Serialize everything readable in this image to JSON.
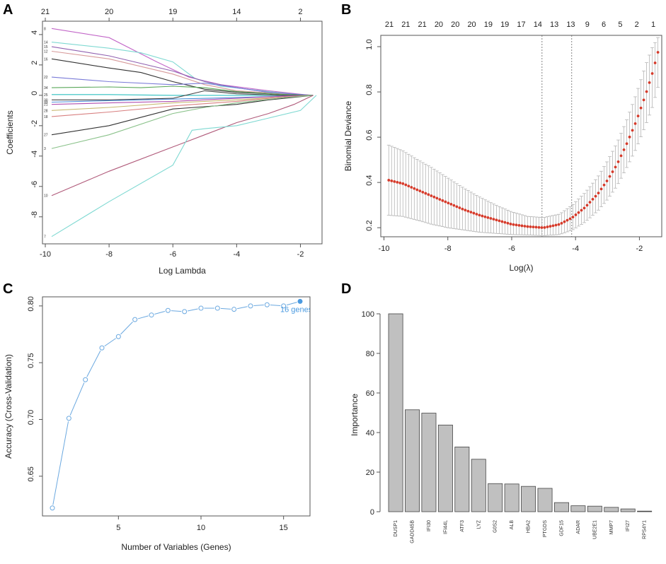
{
  "panels": {
    "A": "A",
    "B": "B",
    "C": "C",
    "D": "D"
  },
  "chart_data": [
    {
      "panel": "A",
      "type": "line",
      "title": "",
      "xlabel": "Log Lambda",
      "ylabel": "Coefficients",
      "xlim": [
        -10,
        -1.5
      ],
      "ylim": [
        -9.5,
        4.6
      ],
      "xticks": [
        -10,
        -8,
        -6,
        -4,
        -2
      ],
      "yticks": [
        4,
        2,
        0,
        -2,
        -4,
        -6,
        -8
      ],
      "top_axis_ticks": [
        {
          "x": -10,
          "label": "21"
        },
        {
          "x": -8,
          "label": "20"
        },
        {
          "x": -6,
          "label": "19"
        },
        {
          "x": -4,
          "label": "14"
        },
        {
          "x": -2,
          "label": "2"
        }
      ],
      "series": [
        {
          "name": "8",
          "color": "#c266c8",
          "points": [
            [
              -9.8,
              4.4
            ],
            [
              -8,
              3.8
            ],
            [
              -6.5,
              2.2
            ],
            [
              -5.5,
              1.2
            ],
            [
              -4.5,
              0.7
            ],
            [
              -3,
              0.3
            ],
            [
              -1.9,
              0.05
            ],
            [
              -1.6,
              0
            ]
          ]
        },
        {
          "name": "14",
          "color": "#7fd9d2",
          "points": [
            [
              -9.8,
              3.5
            ],
            [
              -8,
              3.1
            ],
            [
              -7,
              2.8
            ],
            [
              -6,
              2.2
            ],
            [
              -5.3,
              1.1
            ],
            [
              -4.5,
              0.6
            ],
            [
              -3,
              0.25
            ],
            [
              -1.9,
              0.02
            ],
            [
              -1.6,
              0
            ]
          ]
        },
        {
          "name": "15",
          "color": "#9060b0",
          "points": [
            [
              -9.8,
              3.2
            ],
            [
              -8,
              2.6
            ],
            [
              -6,
              1.6
            ],
            [
              -5,
              0.9
            ],
            [
              -4,
              0.5
            ],
            [
              -3,
              0.2
            ],
            [
              -1.9,
              0.02
            ],
            [
              -1.6,
              0
            ]
          ]
        },
        {
          "name": "12",
          "color": "#d79a9a",
          "points": [
            [
              -9.8,
              2.9
            ],
            [
              -8,
              2.4
            ],
            [
              -6,
              1.4
            ],
            [
              -5,
              0.7
            ],
            [
              -4,
              0.3
            ],
            [
              -2.5,
              0.1
            ],
            [
              -1.6,
              0
            ]
          ]
        },
        {
          "name": "16",
          "color": "#333333",
          "points": [
            [
              -9.8,
              2.4
            ],
            [
              -8,
              1.8
            ],
            [
              -7,
              1.5
            ],
            [
              -6,
              0.9
            ],
            [
              -5,
              0.4
            ],
            [
              -4,
              0.2
            ],
            [
              -2.5,
              0.05
            ],
            [
              -1.6,
              0
            ]
          ]
        },
        {
          "name": "22",
          "color": "#7a7bd8",
          "points": [
            [
              -9.8,
              1.2
            ],
            [
              -8,
              0.9
            ],
            [
              -6,
              0.7
            ],
            [
              -5,
              0.8
            ],
            [
              -4,
              0.5
            ],
            [
              -3,
              0.2
            ],
            [
              -1.6,
              0
            ]
          ]
        },
        {
          "name": "34",
          "color": "#5aa85a",
          "points": [
            [
              -9.8,
              0.5
            ],
            [
              -8,
              0.55
            ],
            [
              -7,
              0.5
            ],
            [
              -6,
              0.6
            ],
            [
              -5,
              0.5
            ],
            [
              -4,
              0.25
            ],
            [
              -2.5,
              0.05
            ],
            [
              -1.6,
              0
            ]
          ]
        },
        {
          "name": "25",
          "color": "#2ec0c0",
          "points": [
            [
              -9.8,
              0.05
            ],
            [
              -8,
              0.05
            ],
            [
              -6,
              0.0
            ],
            [
              -4,
              0.0
            ],
            [
              -1.6,
              0
            ]
          ]
        },
        {
          "name": "30",
          "color": "#444444",
          "points": [
            [
              -9.8,
              -0.3
            ],
            [
              -8,
              -0.3
            ],
            [
              -6,
              -0.2
            ],
            [
              -5,
              0.3
            ],
            [
              -4,
              0.1
            ],
            [
              -2.5,
              0.0
            ],
            [
              -1.6,
              0
            ]
          ]
        },
        {
          "name": "33",
          "color": "#4f8fd8",
          "points": [
            [
              -9.8,
              -0.45
            ],
            [
              -8,
              -0.35
            ],
            [
              -6,
              -0.25
            ],
            [
              -4,
              -0.15
            ],
            [
              -2.5,
              -0.05
            ],
            [
              -1.6,
              0
            ]
          ]
        },
        {
          "name": "21",
          "color": "#b04fb0",
          "points": [
            [
              -9.8,
              -0.6
            ],
            [
              -8,
              -0.5
            ],
            [
              -6,
              -0.4
            ],
            [
              -4,
              -0.2
            ],
            [
              -2.5,
              -0.05
            ],
            [
              -1.6,
              0
            ]
          ]
        },
        {
          "name": "28",
          "color": "#c8b870",
          "points": [
            [
              -9.8,
              -1.0
            ],
            [
              -8,
              -0.8
            ],
            [
              -6,
              -0.5
            ],
            [
              -4,
              -0.3
            ],
            [
              -2.5,
              -0.1
            ],
            [
              -1.6,
              0
            ]
          ]
        },
        {
          "name": "18",
          "color": "#d88080",
          "points": [
            [
              -9.8,
              -1.4
            ],
            [
              -8,
              -1.1
            ],
            [
              -6,
              -0.7
            ],
            [
              -4,
              -0.4
            ],
            [
              -2.5,
              -0.1
            ],
            [
              -1.6,
              0
            ]
          ]
        },
        {
          "name": "27",
          "color": "#333333",
          "points": [
            [
              -9.8,
              -2.6
            ],
            [
              -8,
              -2.0
            ],
            [
              -6,
              -0.9
            ],
            [
              -4,
              -0.6
            ],
            [
              -3,
              -0.3
            ],
            [
              -1.6,
              0
            ]
          ]
        },
        {
          "name": "3",
          "color": "#8ac28a",
          "points": [
            [
              -9.8,
              -3.5
            ],
            [
              -8,
              -2.6
            ],
            [
              -6,
              -1.2
            ],
            [
              -5,
              -0.8
            ],
            [
              -4,
              -0.5
            ],
            [
              -2.5,
              -0.15
            ],
            [
              -1.6,
              0
            ]
          ]
        },
        {
          "name": "10",
          "color": "#b05a7a",
          "points": [
            [
              -9.8,
              -6.6
            ],
            [
              -8,
              -5.0
            ],
            [
              -6,
              -3.4
            ],
            [
              -5,
              -2.6
            ],
            [
              -4,
              -1.8
            ],
            [
              -3,
              -1.2
            ],
            [
              -2.2,
              -0.6
            ],
            [
              -1.8,
              -0.2
            ],
            [
              -1.6,
              0
            ]
          ]
        },
        {
          "name": "7",
          "color": "#7fd9d2",
          "points": [
            [
              -9.8,
              -9.3
            ],
            [
              -8,
              -7.0
            ],
            [
              -6,
              -4.6
            ],
            [
              -5.4,
              -2.3
            ],
            [
              -5,
              -2.2
            ],
            [
              -4,
              -2.0
            ],
            [
              -3,
              -1.5
            ],
            [
              -2,
              -1.0
            ],
            [
              -1.6,
              -0.2
            ],
            [
              -1.5,
              0
            ]
          ]
        }
      ]
    },
    {
      "panel": "B",
      "type": "scatter",
      "title": "",
      "xlabel": "Log(λ)",
      "ylabel": "Binomial Deviance",
      "xlim": [
        -10.1,
        -1.3
      ],
      "ylim": [
        0.16,
        1.05
      ],
      "xticks": [
        -10,
        -8,
        -6,
        -4,
        -2
      ],
      "yticks": [
        0.2,
        0.4,
        0.6,
        0.8,
        1.0
      ],
      "top_axis_labels": [
        "21",
        "21",
        "21",
        "20",
        "20",
        "20",
        "19",
        "19",
        "17",
        "14",
        "13",
        "13",
        "9",
        "6",
        "5",
        "2",
        "1"
      ],
      "vlines": [
        -5.05,
        -4.12
      ],
      "points": [
        [
          -9.85,
          0.41
        ],
        [
          -9.41,
          0.395
        ],
        [
          -9.0,
          0.37
        ],
        [
          -8.5,
          0.34
        ],
        [
          -8.0,
          0.31
        ],
        [
          -7.5,
          0.28
        ],
        [
          -7.0,
          0.255
        ],
        [
          -6.5,
          0.235
        ],
        [
          -6.0,
          0.215
        ],
        [
          -5.5,
          0.205
        ],
        [
          -5.0,
          0.2
        ],
        [
          -4.5,
          0.215
        ],
        [
          -4.1,
          0.245
        ],
        [
          -3.7,
          0.29
        ],
        [
          -3.3,
          0.35
        ],
        [
          -3.0,
          0.41
        ],
        [
          -2.7,
          0.48
        ],
        [
          -2.4,
          0.57
        ],
        [
          -2.1,
          0.67
        ],
        [
          -1.8,
          0.79
        ],
        [
          -1.6,
          0.88
        ],
        [
          -1.42,
          0.975
        ]
      ],
      "ci_low": [
        0.255,
        0.25,
        0.235,
        0.215,
        0.2,
        0.19,
        0.18,
        0.175,
        0.17,
        0.168,
        0.165,
        0.17,
        0.19,
        0.225,
        0.275,
        0.325,
        0.385,
        0.465,
        0.55,
        0.655,
        0.73,
        0.82
      ],
      "ci_high": [
        0.565,
        0.54,
        0.505,
        0.465,
        0.42,
        0.375,
        0.335,
        0.3,
        0.27,
        0.25,
        0.245,
        0.26,
        0.3,
        0.355,
        0.425,
        0.495,
        0.575,
        0.675,
        0.79,
        0.92,
        0.995,
        1.04
      ]
    },
    {
      "panel": "C",
      "type": "line",
      "title": "",
      "xlabel": "Number of Variables (Genes)",
      "ylabel": "Accuracy (Cross-Validation)",
      "xlim": [
        0.4,
        16.6
      ],
      "ylim": [
        0.615,
        0.808
      ],
      "xticks": [
        5,
        10,
        15
      ],
      "yticks": [
        0.65,
        0.7,
        0.75,
        0.8
      ],
      "x": [
        1,
        2,
        3,
        4,
        5,
        6,
        7,
        8,
        9,
        10,
        11,
        12,
        13,
        14,
        15,
        16
      ],
      "values": [
        0.622,
        0.701,
        0.735,
        0.763,
        0.773,
        0.788,
        0.792,
        0.796,
        0.795,
        0.798,
        0.798,
        0.797,
        0.8,
        0.801,
        0.8,
        0.804
      ],
      "highlight": {
        "x": 16,
        "value": 0.804,
        "label": "16 genes"
      }
    },
    {
      "panel": "D",
      "type": "bar",
      "title": "",
      "xlabel": "",
      "ylabel": "Importance",
      "ylim": [
        0,
        105
      ],
      "yticks": [
        0,
        20,
        40,
        60,
        80,
        100
      ],
      "categories": [
        "DUSP1",
        "GADD45B",
        "IFI30",
        "IFI44L",
        "ATF3",
        "LYZ",
        "G0S2",
        "ALB",
        "HBA2",
        "PTGDS",
        "GDF15",
        "ADAR",
        "UBE2E1",
        "MMP7",
        "IFI27",
        "RPS4Y1"
      ],
      "values": [
        100,
        51.5,
        49.8,
        43.8,
        32.7,
        26.5,
        14.2,
        14.0,
        12.8,
        11.8,
        4.6,
        3.0,
        2.8,
        2.2,
        1.4,
        0.3
      ]
    }
  ]
}
